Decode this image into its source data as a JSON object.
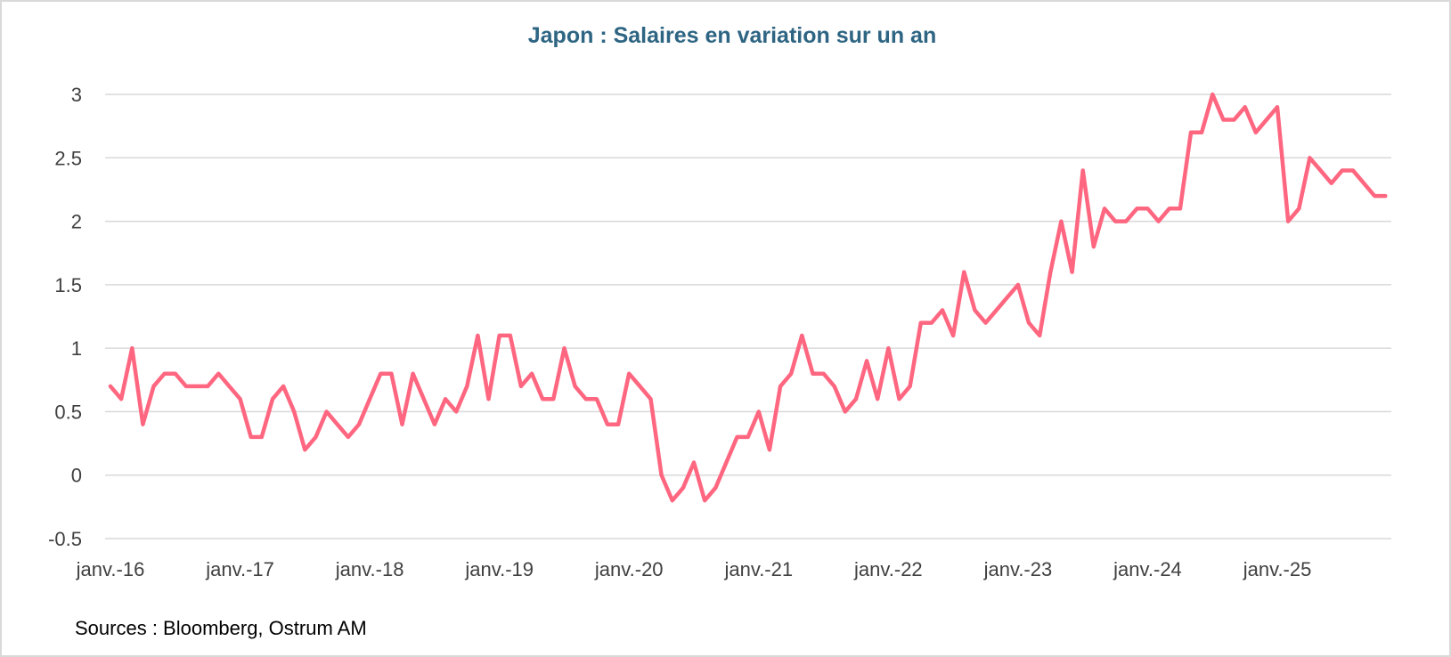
{
  "chart_data": {
    "type": "line",
    "title": "Japon : Salaires en variation sur un an",
    "xlabel": "",
    "ylabel": "",
    "ylim": [
      -0.5,
      3
    ],
    "yticks": [
      "3",
      "2.5",
      "2",
      "1.5",
      "1",
      "0.5",
      "0",
      "-0.5"
    ],
    "ytick_values": [
      3,
      2.5,
      2,
      1.5,
      1,
      0.5,
      0,
      -0.5
    ],
    "xtick_labels": [
      "janv.-16",
      "janv.-17",
      "janv.-18",
      "janv.-19",
      "janv.-20",
      "janv.-21",
      "janv.-22",
      "janv.-23",
      "janv.-24",
      "janv.-25"
    ],
    "x_start": "janv.-16",
    "x_end": "nov.-25",
    "frequency": "monthly",
    "grid": true,
    "legend": "none",
    "series": [
      {
        "color": "#ff6680",
        "values": [
          0.7,
          0.6,
          1.0,
          0.4,
          0.7,
          0.8,
          0.8,
          0.7,
          0.7,
          0.7,
          0.8,
          0.7,
          0.6,
          0.3,
          0.3,
          0.6,
          0.7,
          0.5,
          0.2,
          0.3,
          0.5,
          0.4,
          0.3,
          0.4,
          0.6,
          0.8,
          0.8,
          0.4,
          0.8,
          0.6,
          0.4,
          0.6,
          0.5,
          0.7,
          1.1,
          0.6,
          1.1,
          1.1,
          0.7,
          0.8,
          0.6,
          0.6,
          1.0,
          0.7,
          0.6,
          0.6,
          0.4,
          0.4,
          0.8,
          0.7,
          0.6,
          0.0,
          -0.2,
          -0.1,
          0.1,
          -0.2,
          -0.1,
          0.1,
          0.3,
          0.3,
          0.5,
          0.2,
          0.7,
          0.8,
          1.1,
          0.8,
          0.8,
          0.7,
          0.5,
          0.6,
          0.9,
          0.6,
          1.0,
          0.6,
          0.7,
          1.2,
          1.2,
          1.3,
          1.1,
          1.6,
          1.3,
          1.2,
          1.3,
          1.4,
          1.5,
          1.2,
          1.1,
          1.6,
          2.0,
          1.6,
          2.4,
          1.8,
          2.1,
          2.0,
          2.0,
          2.1,
          2.1,
          2.0,
          2.1,
          2.1,
          2.7,
          2.7,
          3.0,
          2.8,
          2.8,
          2.9,
          2.7,
          2.8,
          2.9,
          2.0,
          2.1,
          2.5,
          2.4,
          2.3,
          2.4,
          2.4,
          2.3,
          2.2,
          2.2
        ]
      }
    ]
  },
  "colors": {
    "title": "#2e6583",
    "gridline": "#d9d9d9",
    "line": "#ff6680"
  },
  "source": "Sources : Bloomberg, Ostrum AM"
}
